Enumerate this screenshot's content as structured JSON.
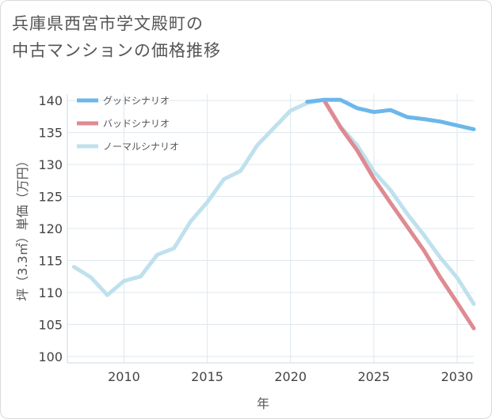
{
  "title": {
    "line1": "兵庫県西宮市学文殿町の",
    "line2": "中古マンションの価格推移"
  },
  "chart_data": {
    "type": "line",
    "xlabel": "年",
    "ylabel": "坪（3.3㎡）単価（万円）",
    "xlim": [
      2006.6,
      2031
    ],
    "ylim": [
      99,
      141
    ],
    "x_ticks": [
      2010,
      2015,
      2020,
      2025,
      2030
    ],
    "y_ticks": [
      100,
      105,
      110,
      115,
      120,
      125,
      130,
      135,
      140
    ],
    "grid": true,
    "legend_position": "top-left",
    "series": [
      {
        "name": "グッドシナリオ",
        "color": "#6cb7ea",
        "x": [
          2021,
          2022,
          2023,
          2024,
          2025,
          2026,
          2027,
          2028,
          2029,
          2030,
          2031
        ],
        "values": [
          139.8,
          140.1,
          140.1,
          138.8,
          138.2,
          138.5,
          137.4,
          137.1,
          136.7,
          136.1,
          135.5
        ]
      },
      {
        "name": "バッドシナリオ",
        "color": "#df8a91",
        "x": [
          2022,
          2023,
          2024,
          2025,
          2026,
          2027,
          2028,
          2029,
          2030,
          2031
        ],
        "values": [
          140.1,
          135.8,
          132.2,
          127.8,
          124.0,
          120.3,
          116.6,
          112.3,
          108.4,
          104.4
        ]
      },
      {
        "name": "ノーマルシナリオ",
        "color": "#bfe1ed",
        "x": [
          2007,
          2008,
          2009,
          2010,
          2011,
          2012,
          2013,
          2014,
          2015,
          2016,
          2017,
          2018,
          2019,
          2020,
          2021,
          2022,
          2023,
          2024,
          2025,
          2026,
          2027,
          2028,
          2029,
          2030,
          2031
        ],
        "values": [
          114.0,
          112.4,
          109.6,
          111.8,
          112.5,
          115.9,
          116.9,
          121.1,
          124.1,
          127.7,
          129.0,
          133.0,
          135.7,
          138.4,
          139.6,
          140.1,
          135.9,
          133.0,
          128.9,
          126.0,
          122.3,
          119.0,
          115.4,
          112.3,
          108.2
        ]
      }
    ]
  }
}
